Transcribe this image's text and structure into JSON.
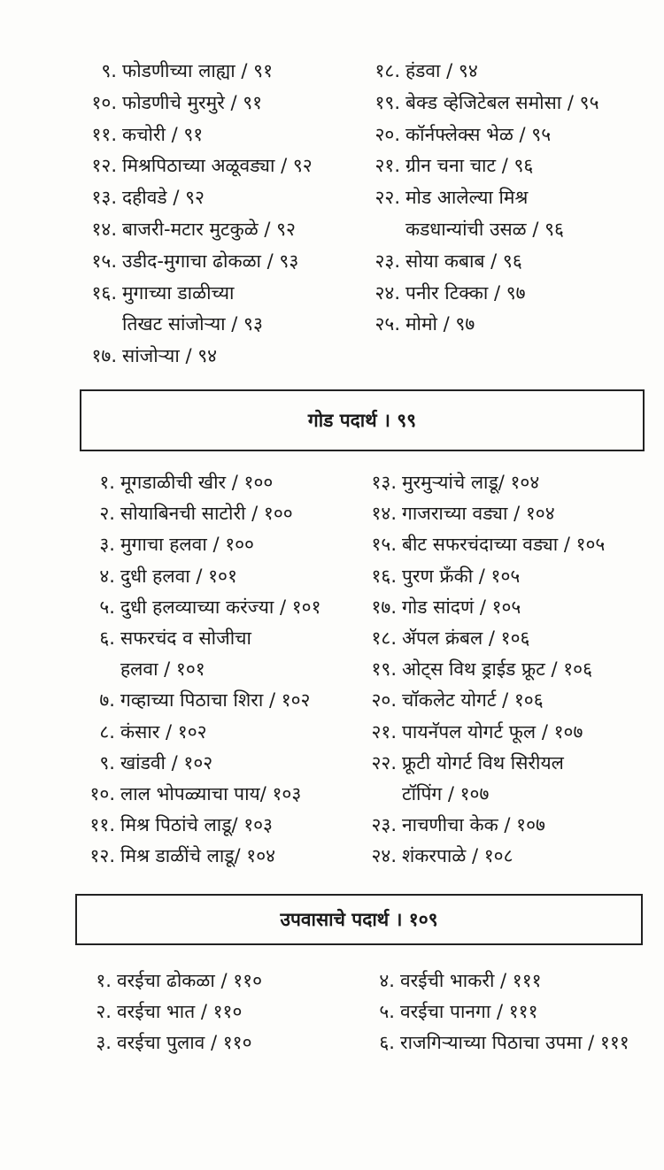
{
  "sections": [
    {
      "left": [
        {
          "num": "९.",
          "lines": [
            "फोडणीच्या लाह्या / ९१"
          ]
        },
        {
          "num": "१०.",
          "lines": [
            "फोडणीचे मुरमुरे / ९१"
          ]
        },
        {
          "num": "११.",
          "lines": [
            "कचोरी / ९१"
          ]
        },
        {
          "num": "१२.",
          "lines": [
            "मिश्रपिठाच्या अळूवड्या / ९२"
          ]
        },
        {
          "num": "१३.",
          "lines": [
            "दहीवडे / ९२"
          ]
        },
        {
          "num": "१४.",
          "lines": [
            "बाजरी-मटार मुटकुळे / ९२"
          ]
        },
        {
          "num": "१५.",
          "lines": [
            "उडीद-मुगाचा ढोकळा / ९३"
          ]
        },
        {
          "num": "१६.",
          "lines": [
            "मुगाच्या डाळीच्या",
            "तिखट सांजोऱ्या / ९३"
          ]
        },
        {
          "num": "१७.",
          "lines": [
            "सांजोऱ्या / ९४"
          ]
        }
      ],
      "right": [
        {
          "num": "१८.",
          "lines": [
            "हंडवा / ९४"
          ]
        },
        {
          "num": "१९.",
          "lines": [
            "बेक्ड व्हेजिटेबल समोसा / ९५"
          ]
        },
        {
          "num": "२०.",
          "lines": [
            "कॉर्नफ्लेक्स भेळ / ९५"
          ]
        },
        {
          "num": "२१.",
          "lines": [
            "ग्रीन चना चाट / ९६"
          ]
        },
        {
          "num": "२२.",
          "lines": [
            "मोड आलेल्या मिश्र",
            "कडधान्यांची उसळ / ९६"
          ]
        },
        {
          "num": "२३.",
          "lines": [
            "सोया कबाब / ९६"
          ]
        },
        {
          "num": "२४.",
          "lines": [
            "पनीर टिक्का / ९७"
          ]
        },
        {
          "num": "२५.",
          "lines": [
            "मोमो / ९७"
          ]
        }
      ]
    },
    {
      "heading": "गोड पदार्थ । ९९",
      "left": [
        {
          "num": "१.",
          "lines": [
            "मूगडाळीची खीर / १००"
          ]
        },
        {
          "num": "२.",
          "lines": [
            "सोयाबिनची साटोरी / १००"
          ]
        },
        {
          "num": "३.",
          "lines": [
            "मुगाचा हलवा / १००"
          ]
        },
        {
          "num": "४.",
          "lines": [
            "दुधी हलवा / १०१"
          ]
        },
        {
          "num": "५.",
          "lines": [
            "दुधी हलव्याच्या करंज्या / १०१"
          ]
        },
        {
          "num": "६.",
          "lines": [
            "सफरचंद व सोजीचा",
            "हलवा / १०१"
          ]
        },
        {
          "num": "७.",
          "lines": [
            "गव्हाच्या पिठाचा शिरा / १०२"
          ]
        },
        {
          "num": "८.",
          "lines": [
            "कंसार / १०२"
          ]
        },
        {
          "num": "९.",
          "lines": [
            "खांडवी / १०२"
          ]
        },
        {
          "num": "१०.",
          "lines": [
            "लाल भोपळ्याचा पाय/ १०३"
          ]
        },
        {
          "num": "११.",
          "lines": [
            "मिश्र पिठांचे लाडू/ १०३"
          ]
        },
        {
          "num": "१२.",
          "lines": [
            "मिश्र डाळींचे लाडू/ १०४"
          ]
        }
      ],
      "right": [
        {
          "num": "१३.",
          "lines": [
            "मुरमुऱ्यांचे लाडू/ १०४"
          ]
        },
        {
          "num": "१४.",
          "lines": [
            "गाजराच्या वड्या / १०४"
          ]
        },
        {
          "num": "१५.",
          "lines": [
            "बीट सफरचंदाच्या वड्या / १०५"
          ]
        },
        {
          "num": "१६.",
          "lines": [
            "पुरण फ्रँकी / १०५"
          ]
        },
        {
          "num": "१७.",
          "lines": [
            "गोड सांदणं / १०५"
          ]
        },
        {
          "num": "१८.",
          "lines": [
            "ॲपल क्रंबल / १०६"
          ]
        },
        {
          "num": "१९.",
          "lines": [
            "ओट्स विथ ड्राईड फ्रूट / १०६"
          ]
        },
        {
          "num": "२०.",
          "lines": [
            "चॉकलेट योगर्ट / १०६"
          ]
        },
        {
          "num": "२१.",
          "lines": [
            "पायनॅपल योगर्ट फूल / १०७"
          ]
        },
        {
          "num": "२२.",
          "lines": [
            "फ्रूटी योगर्ट विथ सिरीयल",
            "टॉपिंग / १०७"
          ]
        },
        {
          "num": "२३.",
          "lines": [
            "नाचणीचा केक / १०७"
          ]
        },
        {
          "num": "२४.",
          "lines": [
            "शंकरपाळे / १०८"
          ]
        }
      ]
    },
    {
      "heading": "उपवासाचे पदार्थ । १०९",
      "left": [
        {
          "num": "१.",
          "lines": [
            "वरईचा ढोकळा / ११०"
          ]
        },
        {
          "num": "२.",
          "lines": [
            "वरईचा भात / ११०"
          ]
        },
        {
          "num": "३.",
          "lines": [
            "वरईचा पुलाव / ११०"
          ]
        }
      ],
      "right": [
        {
          "num": "४.",
          "lines": [
            "वरईची भाकरी / १११"
          ]
        },
        {
          "num": "५.",
          "lines": [
            "वरईचा पानगा / १११"
          ]
        },
        {
          "num": "६.",
          "lines": [
            "राजगिऱ्याच्या पिठाचा उपमा / १११"
          ]
        }
      ]
    }
  ]
}
